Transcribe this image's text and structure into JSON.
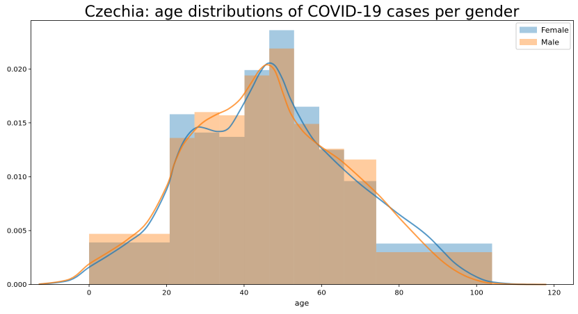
{
  "chart_data": {
    "type": "histogram",
    "title": "Czechia: age distributions of COVID-19 cases per gender",
    "xlabel": "age",
    "ylabel": "",
    "xlim": [
      -15,
      125
    ],
    "ylim": [
      0,
      0.0245
    ],
    "xticks": [
      0,
      20,
      40,
      60,
      80,
      100,
      120
    ],
    "yticks": [
      0.0,
      0.005,
      0.01,
      0.015,
      0.02
    ],
    "ytick_labels": [
      "0.000",
      "0.005",
      "0.010",
      "0.015",
      "0.020"
    ],
    "grid": false,
    "legend_position": "top-right",
    "bin_edges": [
      0,
      20.8,
      27.2,
      33.6,
      40.1,
      46.5,
      52.9,
      59.4,
      65.8,
      74.1,
      104
    ],
    "series": [
      {
        "name": "Female",
        "color": "#1f77b4",
        "hist_values": [
          0.0039,
          0.0158,
          0.0141,
          0.0137,
          0.0199,
          0.0236,
          0.0165,
          0.0125,
          0.0096,
          0.0038
        ],
        "kde": {
          "x": [
            -13,
            -5,
            0,
            5,
            10,
            15,
            20,
            22,
            24,
            26,
            28,
            30,
            33,
            36,
            39,
            42,
            44,
            46,
            48,
            50,
            52,
            55,
            58,
            61,
            65,
            70,
            75,
            80,
            85,
            88,
            91,
            94,
            97,
            100,
            103,
            108,
            113,
            118
          ],
          "y": [
            2e-05,
            0.0004,
            0.0016,
            0.0027,
            0.0039,
            0.0054,
            0.0088,
            0.0112,
            0.013,
            0.0141,
            0.0146,
            0.0145,
            0.0142,
            0.0145,
            0.0162,
            0.0182,
            0.0196,
            0.0205,
            0.0203,
            0.019,
            0.0172,
            0.0151,
            0.0134,
            0.0123,
            0.0109,
            0.0093,
            0.0079,
            0.0065,
            0.0052,
            0.0043,
            0.0032,
            0.0021,
            0.0013,
            0.0007,
            0.0003,
            8e-05,
            1e-05,
            0.0
          ]
        }
      },
      {
        "name": "Male",
        "color": "#ff7f0e",
        "hist_values": [
          0.0047,
          0.0136,
          0.016,
          0.0157,
          0.0194,
          0.0219,
          0.0149,
          0.0126,
          0.0116,
          0.003
        ],
        "kde": {
          "x": [
            -13,
            -5,
            0,
            5,
            10,
            15,
            20,
            22,
            24,
            26,
            28,
            30,
            33,
            36,
            39,
            42,
            44,
            46,
            48,
            50,
            52,
            55,
            58,
            61,
            65,
            70,
            75,
            80,
            85,
            88,
            91,
            94,
            97,
            100,
            103,
            108,
            113,
            118
          ],
          "y": [
            2e-05,
            0.0005,
            0.0019,
            0.003,
            0.0042,
            0.0058,
            0.0091,
            0.0112,
            0.0128,
            0.0138,
            0.0146,
            0.0152,
            0.0158,
            0.0163,
            0.0172,
            0.0188,
            0.0199,
            0.0204,
            0.0198,
            0.0178,
            0.0159,
            0.0143,
            0.0133,
            0.0125,
            0.0115,
            0.0099,
            0.0082,
            0.0062,
            0.0043,
            0.0032,
            0.0022,
            0.0014,
            0.0008,
            0.0004,
            0.00015,
            4e-05,
            1e-05,
            0.0
          ]
        }
      }
    ]
  }
}
